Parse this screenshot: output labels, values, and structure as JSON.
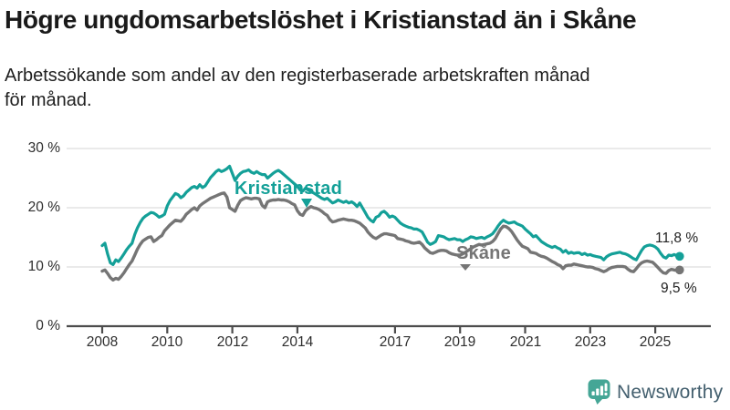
{
  "accent_colors": {
    "kristianstad_teal": "#14a098",
    "skane_gray": "#757575",
    "logo_teal": "#45a696",
    "logo_text_blue_gray": "#44606f",
    "gridline": "#e3e3e3",
    "axis": "#4d4d4d"
  },
  "footer": {
    "brand": "Newsworthy",
    "logo_icon": "speech-bubble-bar-chart-exclamation"
  },
  "chart_data": {
    "type": "line",
    "title": "Högre ungdomsarbetslöshet i Kristianstad än i Skåne",
    "subtitle": "Arbetssökande som andel av den registerbaserade arbetskraften månad för månad.",
    "subtitle_lines": [
      "Arbetssökande som andel av den registerbaserade arbetskraften månad",
      "för månad."
    ],
    "x_unit": "month",
    "x_start": "2008-01",
    "x_end": "2025-10",
    "x_tick_years": [
      "2008",
      "2010",
      "2012",
      "2014",
      "2017",
      "2019",
      "2021",
      "2023",
      "2025"
    ],
    "y_axis": {
      "ticks_top_down": [
        {
          "value": 30,
          "label": "30 %"
        },
        {
          "value": 20,
          "label": "20 %"
        },
        {
          "value": 10,
          "label": "10 %"
        },
        {
          "value": 0,
          "label": "0 %"
        }
      ]
    },
    "ylim": [
      0,
      30
    ],
    "grid": "horizontal",
    "legend": "inline-labels-on-lines",
    "series": [
      {
        "name": "Kristianstad",
        "color": "#14a098",
        "end_label": "11,8 %",
        "end_value": 11.8,
        "values": [
          13.6,
          14.0,
          12.2,
          10.7,
          10.4,
          11.2,
          10.9,
          11.5,
          12.2,
          12.9,
          13.5,
          14.0,
          15.5,
          16.6,
          17.5,
          18.2,
          18.6,
          18.9,
          19.2,
          19.1,
          18.8,
          18.4,
          18.6,
          18.9,
          20.3,
          21.2,
          21.8,
          22.4,
          22.2,
          21.7,
          22.0,
          22.6,
          23.0,
          23.4,
          23.6,
          23.3,
          23.9,
          23.4,
          23.7,
          24.4,
          25.1,
          25.6,
          26.1,
          26.4,
          26.1,
          26.3,
          26.6,
          27.0,
          25.8,
          24.6,
          25.3,
          25.8,
          26.1,
          26.2,
          26.4,
          26.0,
          25.8,
          26.1,
          25.8,
          25.6,
          25.6,
          25.0,
          25.4,
          25.8,
          26.1,
          26.3,
          26.0,
          25.6,
          25.2,
          24.8,
          24.4,
          24.0,
          23.6,
          23.0,
          22.8,
          23.3,
          23.0,
          22.7,
          22.5,
          22.2,
          21.9,
          21.6,
          21.4,
          21.6,
          21.2,
          20.8,
          21.0,
          21.3,
          21.1,
          20.9,
          21.1,
          20.8,
          21.0,
          20.7,
          20.2,
          20.8,
          20.0,
          19.2,
          18.4,
          17.9,
          17.6,
          18.4,
          18.6,
          19.2,
          19.4,
          19.0,
          18.4,
          18.6,
          18.4,
          17.9,
          17.4,
          17.1,
          16.9,
          16.7,
          16.6,
          16.4,
          16.4,
          16.2,
          15.9,
          15.1,
          14.2,
          13.8,
          14.0,
          14.3,
          15.3,
          15.2,
          15.1,
          14.8,
          14.6,
          14.7,
          14.8,
          14.6,
          14.6,
          14.3,
          14.6,
          14.8,
          15.1,
          15.0,
          14.8,
          14.9,
          15.0,
          14.8,
          15.1,
          15.3,
          15.6,
          16.2,
          16.9,
          17.5,
          17.9,
          17.6,
          17.4,
          17.5,
          17.6,
          17.3,
          17.1,
          16.9,
          16.4,
          16.0,
          15.6,
          15.1,
          15.3,
          14.8,
          14.3,
          14.0,
          13.7,
          13.5,
          13.3,
          13.5,
          13.2,
          13.0,
          12.5,
          12.8,
          12.3,
          12.5,
          12.3,
          12.4,
          12.4,
          12.1,
          12.3,
          12.0,
          12.1,
          11.9,
          11.8,
          11.7,
          11.6,
          11.2,
          11.7,
          12.0,
          12.2,
          12.3,
          12.4,
          12.5,
          12.3,
          12.2,
          12.0,
          11.7,
          11.4,
          11.2,
          12.0,
          12.8,
          13.4,
          13.6,
          13.7,
          13.6,
          13.4,
          13.0,
          12.3,
          11.7,
          11.5,
          12.0,
          11.9,
          12.1,
          11.9,
          11.8
        ]
      },
      {
        "name": "Skåne",
        "color": "#757575",
        "end_label": "9,5 %",
        "end_value": 9.5,
        "values": [
          9.3,
          9.5,
          8.9,
          8.2,
          7.8,
          8.1,
          7.9,
          8.4,
          9.0,
          9.7,
          10.4,
          11.0,
          12.0,
          13.0,
          13.8,
          14.4,
          14.7,
          15.0,
          15.1,
          14.3,
          14.6,
          15.0,
          15.3,
          16.1,
          16.6,
          17.1,
          17.5,
          17.9,
          17.8,
          17.7,
          18.2,
          18.9,
          19.3,
          19.7,
          20.0,
          19.6,
          20.3,
          20.7,
          21.0,
          21.3,
          21.6,
          21.8,
          22.0,
          22.2,
          22.4,
          22.5,
          21.8,
          20.0,
          19.7,
          19.4,
          20.4,
          21.2,
          21.5,
          21.7,
          21.6,
          21.5,
          21.6,
          21.6,
          21.5,
          20.4,
          20.0,
          21.0,
          21.2,
          21.3,
          21.3,
          21.4,
          21.3,
          21.3,
          21.2,
          21.0,
          20.7,
          20.5,
          19.5,
          18.9,
          18.7,
          19.5,
          19.9,
          20.2,
          20.0,
          19.9,
          19.7,
          19.4,
          19.0,
          18.7,
          18.0,
          17.6,
          17.7,
          17.9,
          18.0,
          18.1,
          18.0,
          17.9,
          17.9,
          17.8,
          17.6,
          17.4,
          17.0,
          16.6,
          15.9,
          15.4,
          15.0,
          14.8,
          15.1,
          15.4,
          15.6,
          15.6,
          15.5,
          15.4,
          15.3,
          14.8,
          14.7,
          14.6,
          14.4,
          14.3,
          14.1,
          14.0,
          14.1,
          14.2,
          13.8,
          13.2,
          12.8,
          12.4,
          12.3,
          12.5,
          12.7,
          12.8,
          12.8,
          12.7,
          12.4,
          12.2,
          12.1,
          12.0,
          12.0,
          12.2,
          12.5,
          12.8,
          13.1,
          13.4,
          13.6,
          13.8,
          13.7,
          13.8,
          13.9,
          14.0,
          14.3,
          14.8,
          15.6,
          16.4,
          16.9,
          16.8,
          16.5,
          16.0,
          15.3,
          14.6,
          14.0,
          13.5,
          13.3,
          13.1,
          12.5,
          12.4,
          12.3,
          12.0,
          11.8,
          11.7,
          11.5,
          11.2,
          10.9,
          10.7,
          10.4,
          10.2,
          9.7,
          10.2,
          10.3,
          10.3,
          10.5,
          10.4,
          10.3,
          10.2,
          10.1,
          10.0,
          10.0,
          9.9,
          9.7,
          9.6,
          9.4,
          9.2,
          9.4,
          9.7,
          9.9,
          10.0,
          10.1,
          10.1,
          10.1,
          10.0,
          9.6,
          9.3,
          9.2,
          9.7,
          10.3,
          10.7,
          10.9,
          11.0,
          10.9,
          10.8,
          10.4,
          9.9,
          9.4,
          9.0,
          8.9,
          9.4,
          9.6,
          9.5,
          9.4,
          9.5
        ]
      }
    ]
  }
}
